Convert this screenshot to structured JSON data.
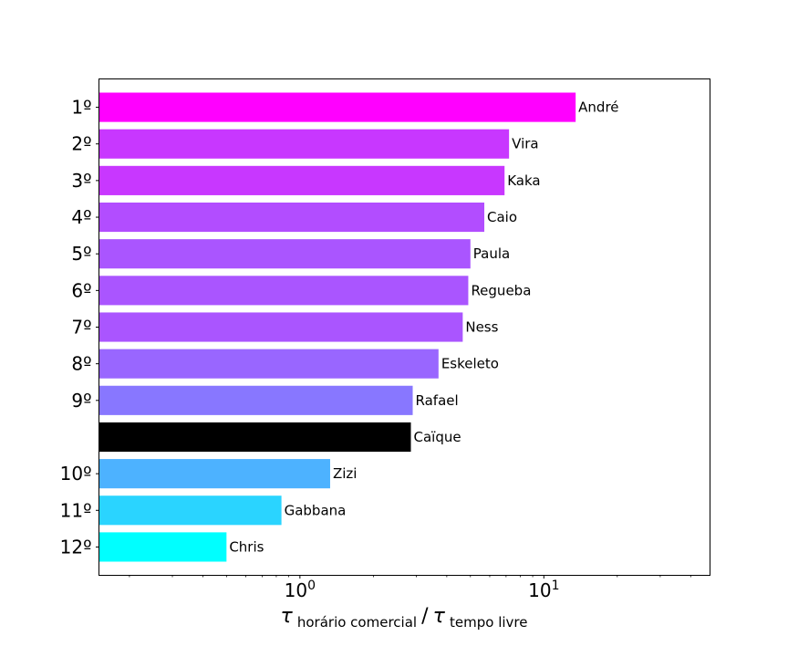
{
  "chart_data": {
    "type": "bar",
    "orientation": "horizontal",
    "x_scale": "log",
    "xlim": [
      0.15,
      48
    ],
    "grid": false,
    "x_ticks": [
      {
        "value": 1,
        "base": "10",
        "exp": "0"
      },
      {
        "value": 10,
        "base": "10",
        "exp": "1"
      }
    ],
    "xlabel": {
      "tau1": "τ",
      "sub1": "horário comercial",
      "slash": "/",
      "tau2": "τ",
      "sub2": "tempo livre"
    },
    "bars": [
      {
        "rank": "1º",
        "name": "André",
        "value": 13.5,
        "color": "#ff00ff"
      },
      {
        "rank": "2º",
        "name": "Vira",
        "value": 7.2,
        "color": "#c837ff"
      },
      {
        "rank": "3º",
        "name": "Kaka",
        "value": 6.9,
        "color": "#c837ff"
      },
      {
        "rank": "4º",
        "name": "Caio",
        "value": 5.7,
        "color": "#b24dff"
      },
      {
        "rank": "5º",
        "name": "Paula",
        "value": 5.0,
        "color": "#aa55ff"
      },
      {
        "rank": "6º",
        "name": "Regueba",
        "value": 4.9,
        "color": "#aa55ff"
      },
      {
        "rank": "7º",
        "name": "Ness",
        "value": 4.65,
        "color": "#aa55ff"
      },
      {
        "rank": "8º",
        "name": "Eskeleto",
        "value": 3.7,
        "color": "#9966ff"
      },
      {
        "rank": "9º",
        "name": "Rafael",
        "value": 2.9,
        "color": "#8877ff"
      },
      {
        "rank": "",
        "name": "Caïque",
        "value": 2.85,
        "color": "#000000"
      },
      {
        "rank": "10º",
        "name": "Zizi",
        "value": 1.33,
        "color": "#4db2ff"
      },
      {
        "rank": "11º",
        "name": "Gabbana",
        "value": 0.84,
        "color": "#2ad4ff"
      },
      {
        "rank": "12º",
        "name": "Chris",
        "value": 0.5,
        "color": "#00ffff"
      }
    ]
  }
}
